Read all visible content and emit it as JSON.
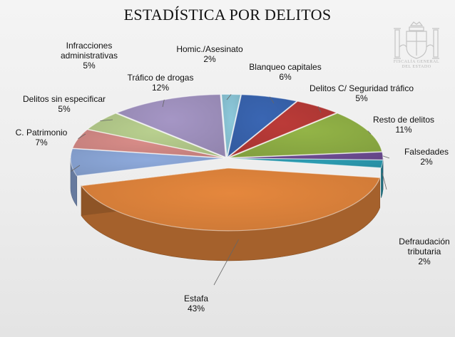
{
  "chart_data": {
    "type": "pie",
    "title": "ESTADÍSTICA POR DELITOS",
    "slices": [
      {
        "name": "Homic./Asesinato",
        "value": 2,
        "label": "2%",
        "color": "#8dc9db"
      },
      {
        "name": "Blanqueo capitales",
        "value": 6,
        "label": "6%",
        "color": "#3a66b3"
      },
      {
        "name": "Delitos C/ Seguridad tráfico",
        "value": 5,
        "label": "5%",
        "color": "#bb3b38"
      },
      {
        "name": "Resto de delitos",
        "value": 11,
        "label": "11%",
        "color": "#93b447"
      },
      {
        "name": "Falsedades",
        "value": 2,
        "label": "2%",
        "color": "#6e4d95"
      },
      {
        "name": "Defraudación tributaria",
        "value": 2,
        "label": "2%",
        "color": "#2c9db3"
      },
      {
        "name": "Estafa",
        "value": 43,
        "label": "43%",
        "color": "#e5873d"
      },
      {
        "name": "C. Patrimonio",
        "value": 7,
        "label": "7%",
        "color": "#8eaadc"
      },
      {
        "name": "Delitos sin especificar",
        "value": 5,
        "label": "5%",
        "color": "#d98d89"
      },
      {
        "name": "Infracciones administrativas",
        "value": 5,
        "label": "5%",
        "color": "#b9d08f"
      },
      {
        "name": "Tráfico de drogas",
        "value": 12,
        "label": "12%",
        "color": "#a596c5"
      }
    ],
    "legend": "none"
  },
  "logo": {
    "text": "FISCALÍA GENERAL DEL ESTADO"
  }
}
